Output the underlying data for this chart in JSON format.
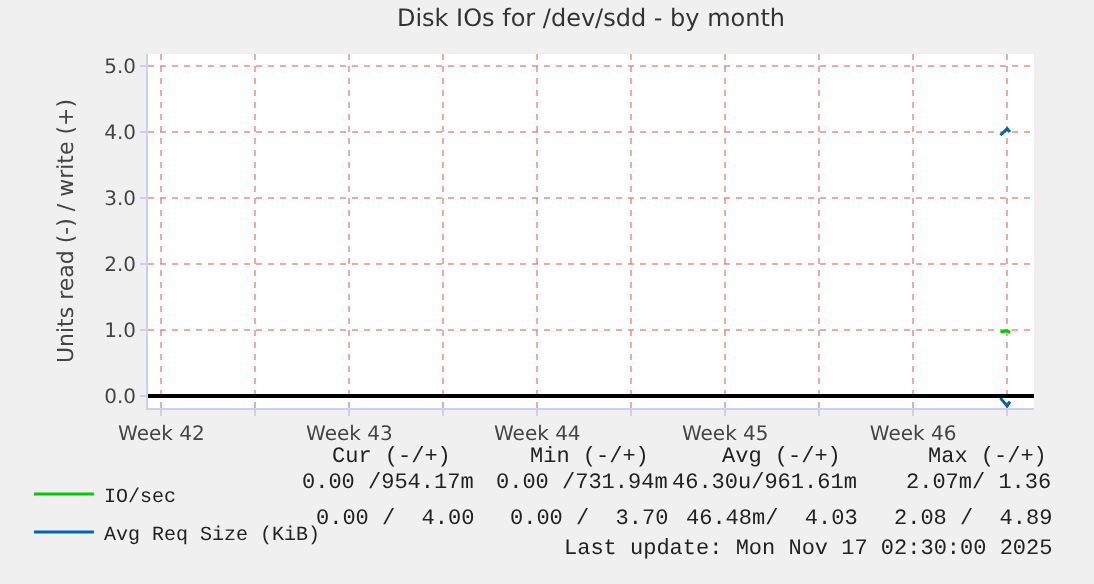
{
  "chart_data": {
    "type": "line",
    "title": "Disk IOs for /dev/sdd - by month",
    "ylabel": "Units read (-) / write (+)",
    "xlim": [
      "2025-10-16T00:00",
      "2025-11-18T00:00"
    ],
    "xticks": [
      {
        "value": "2025-10-16T12:00",
        "label": "Week 42"
      },
      {
        "value": "2025-10-20",
        "label": null
      },
      {
        "value": "2025-10-23T12:00",
        "label": "Week 43"
      },
      {
        "value": "2025-10-27",
        "label": null
      },
      {
        "value": "2025-10-30T12:00",
        "label": "Week 44"
      },
      {
        "value": "2025-11-03",
        "label": null
      },
      {
        "value": "2025-11-06T12:00",
        "label": "Week 45"
      },
      {
        "value": "2025-11-10",
        "label": null
      },
      {
        "value": "2025-11-13T12:00",
        "label": "Week 46"
      },
      {
        "value": "2025-11-17",
        "label": null
      }
    ],
    "ylim": [
      -0.18,
      5.18
    ],
    "yticks": [
      {
        "value": 0,
        "label": "0.0"
      },
      {
        "value": 1,
        "label": "1.0"
      },
      {
        "value": 2,
        "label": "2.0"
      },
      {
        "value": 3,
        "label": "3.0"
      },
      {
        "value": 4,
        "label": "4.0"
      },
      {
        "value": 5,
        "label": "5.0"
      }
    ],
    "grid": true,
    "legend": "bottom left",
    "marker": "none",
    "line_style": "solid",
    "series": [
      {
        "name": "IO/sec",
        "color": "#00cc00",
        "x": [
          "2025-11-16T18:00",
          "2025-11-17T00:00",
          "2025-11-17T02:30"
        ],
        "values": [
          0.97,
          0.99,
          0.96
        ]
      },
      {
        "name": "Avg Req Size (KiB)",
        "color": "#0066b3",
        "x": [
          "2025-11-16T18:00",
          "2025-11-17T00:00",
          "2025-11-17T02:30",
          null,
          "2025-11-16T18:00",
          "2025-11-17T00:00",
          "2025-11-17T02:30"
        ],
        "values": [
          3.95,
          4.05,
          4.0,
          null,
          -0.03,
          -0.15,
          -0.08
        ]
      }
    ],
    "ref_lines": [
      {
        "axis": "y",
        "value": 0,
        "color": "#000000"
      }
    ],
    "annotations": [
      "Cur (-/+)",
      "Min (-/+)",
      "Avg (-/+)",
      "Max (-/+)",
      "0.00 /954.17m",
      "0.00 /731.94m",
      "46.30u/961.61m",
      "2.07m/ 1.36",
      "0.00 /  4.00",
      "0.00 /  3.70",
      "46.48m/  4.03",
      "2.08 /  4.89",
      "Last update: Mon Nov 17 02:30:00 2025"
    ]
  }
}
